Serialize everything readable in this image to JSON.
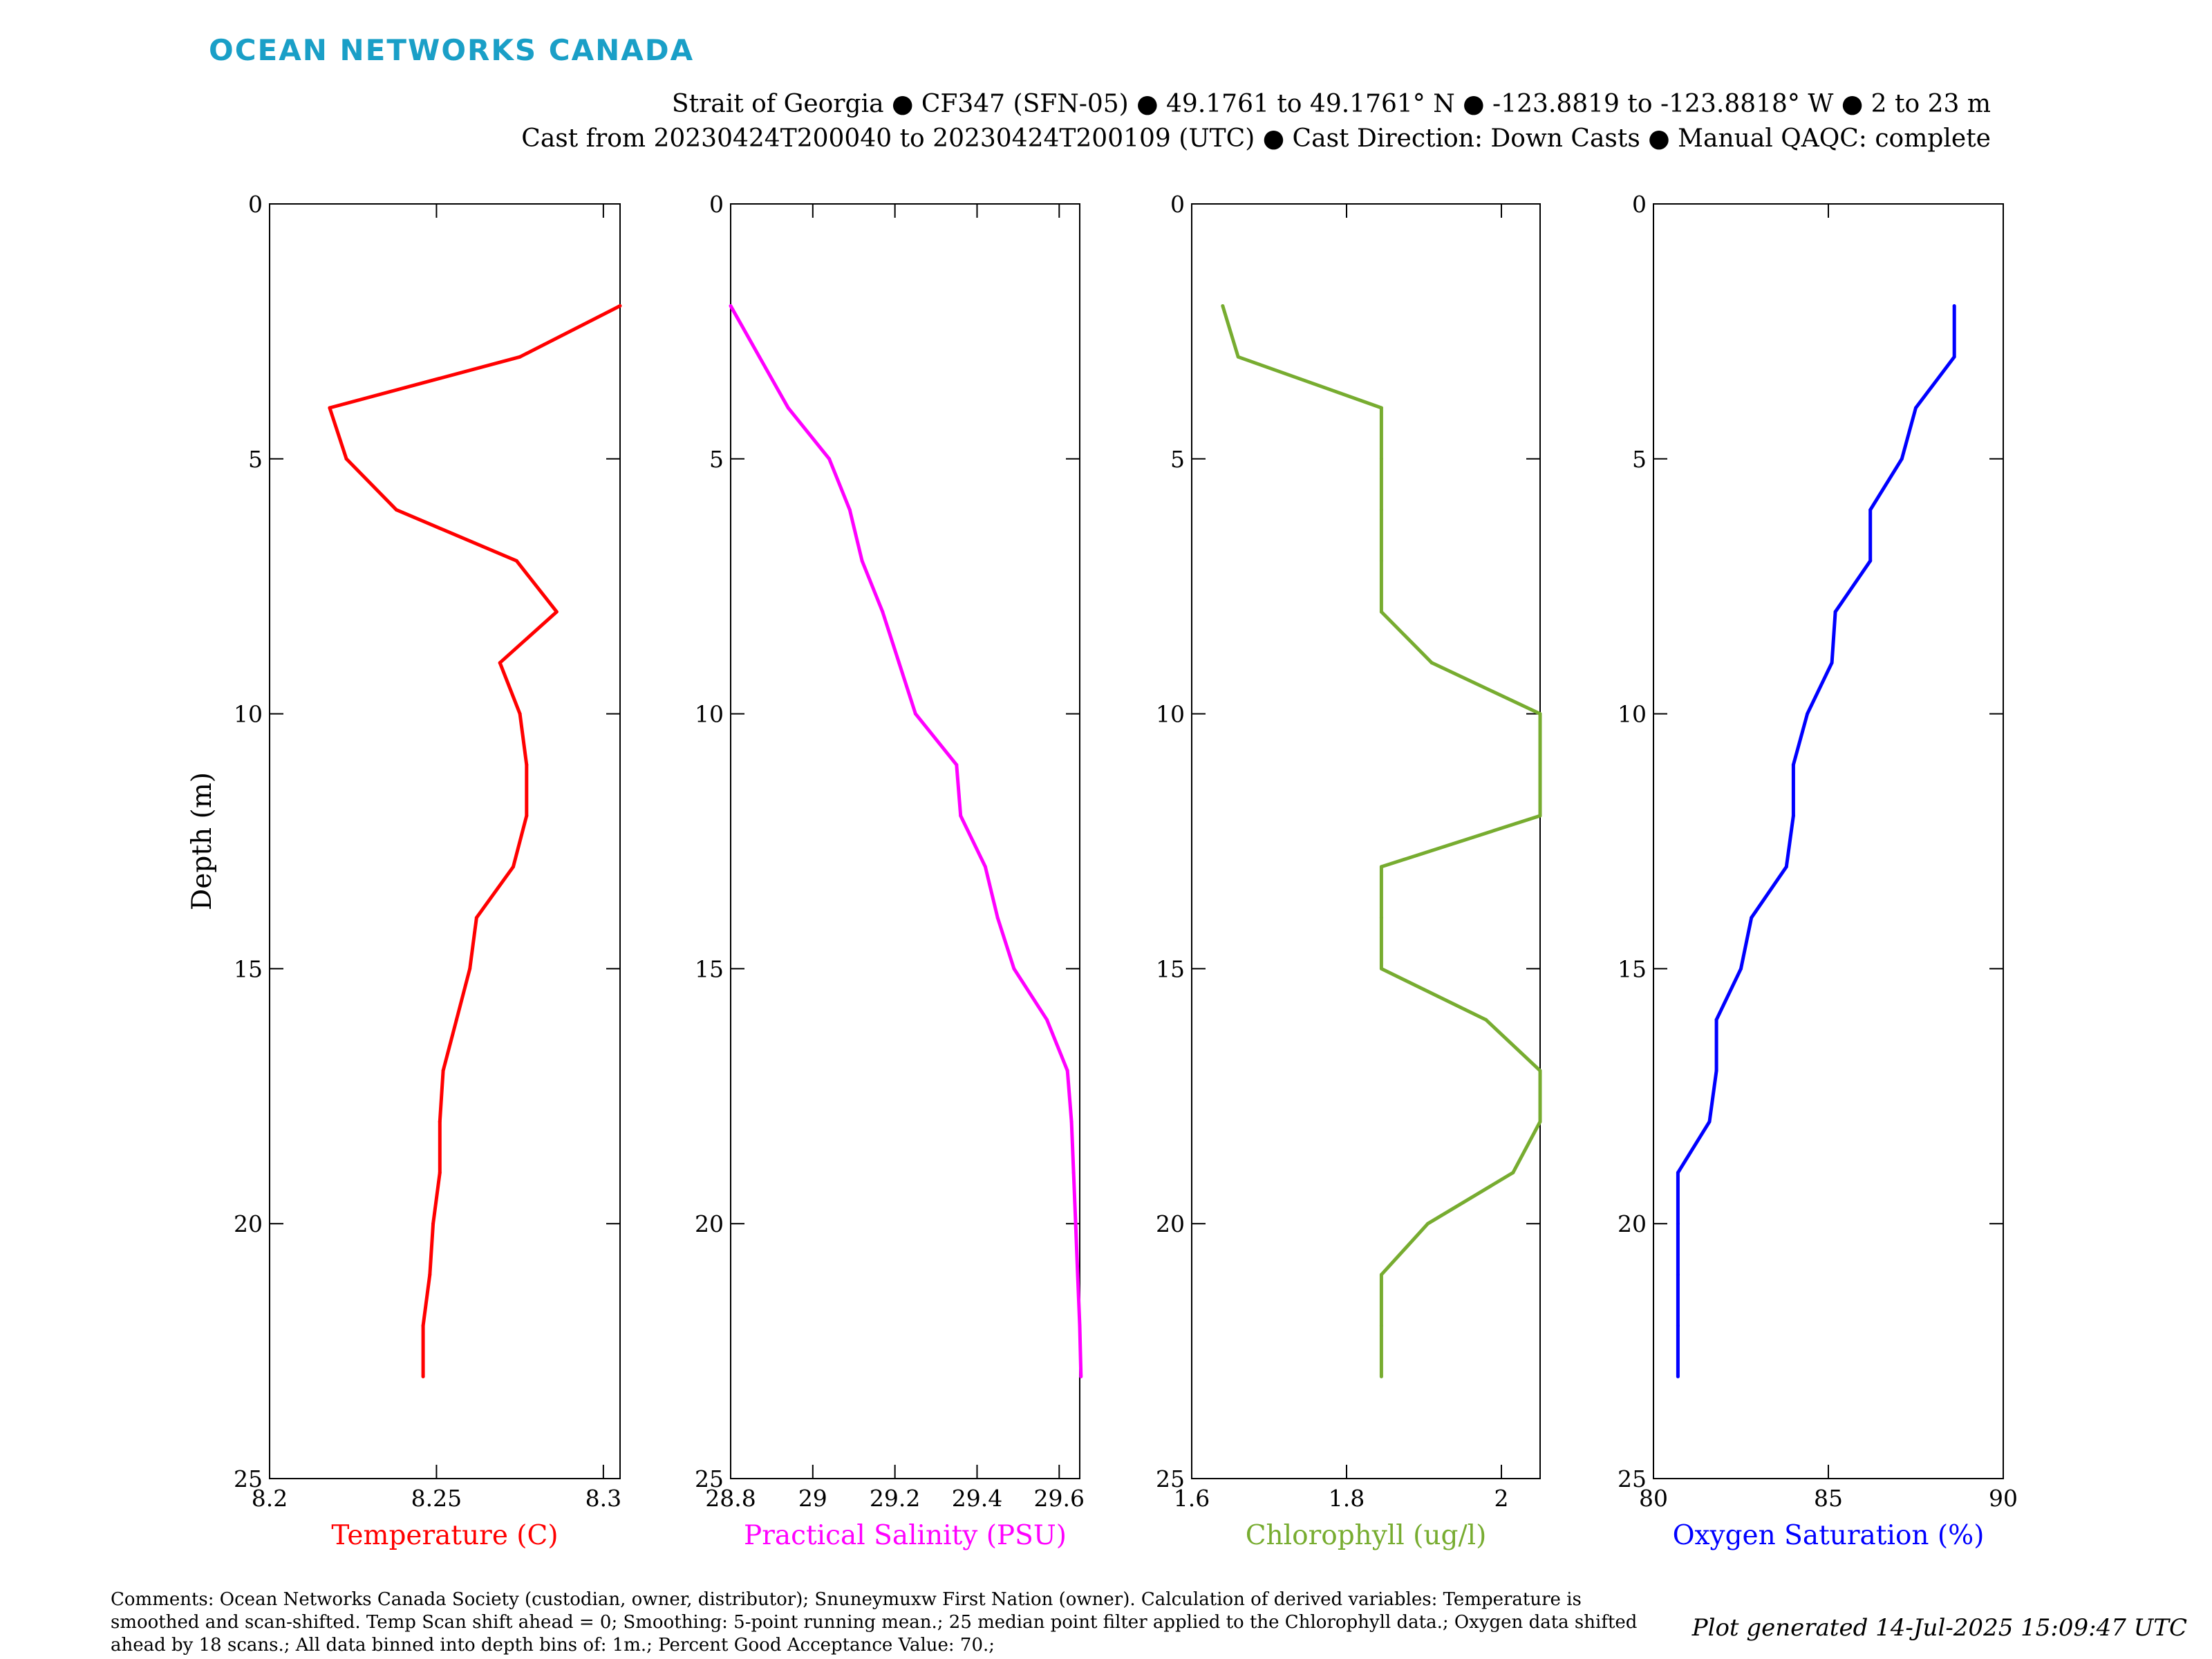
{
  "brand": "OCEAN NETWORKS CANADA",
  "header": {
    "line1": "Strait of Georgia ● CF347 (SFN-05) ● 49.1761 to 49.1761° N ● -123.8819 to -123.8818° W ● 2 to 23 m",
    "line2": "Cast from 20230424T200040 to 20230424T200109 (UTC) ● Cast Direction: Down Casts ● Manual QAQC: complete"
  },
  "comments": "Comments: Ocean Networks Canada Society (custodian, owner, distributor); Snuneymuxw First Nation (owner). Calculation of derived variables: Temperature is smoothed and scan-shifted. Temp Scan shift ahead = 0; Smoothing: 5-point running mean.; 25 median point filter applied to the Chlorophyll data.; Oxygen data shifted ahead by 18 scans.; All data binned into depth bins of: 1m.; Percent Good Acceptance Value: 70.;",
  "footer": "Plot generated 14-Jul-2025 15:09:47 UTC",
  "chart_data": [
    {
      "type": "line",
      "ylabel": "Depth (m)",
      "xlabel": "Temperature (C)",
      "color": "#ff0000",
      "xlim": [
        8.2,
        8.305
      ],
      "ylim": [
        0,
        25
      ],
      "y_reversed": true,
      "xticks": [
        8.2,
        8.25,
        8.3
      ],
      "xtick_labels": [
        "8.2",
        "8.25",
        "8.3"
      ],
      "yticks": [
        0,
        5,
        10,
        15,
        20,
        25
      ],
      "ytick_labels": [
        "0",
        "5",
        "10",
        "15",
        "20",
        "25"
      ],
      "depth": [
        2,
        3,
        4,
        5,
        6,
        7,
        8,
        9,
        10,
        11,
        12,
        13,
        14,
        15,
        16,
        17,
        18,
        19,
        20,
        21,
        22,
        23
      ],
      "values": [
        8.305,
        8.275,
        8.218,
        8.223,
        8.238,
        8.274,
        8.286,
        8.269,
        8.275,
        8.277,
        8.277,
        8.273,
        8.262,
        8.26,
        8.256,
        8.252,
        8.251,
        8.251,
        8.249,
        8.248,
        8.246,
        8.246
      ]
    },
    {
      "type": "line",
      "ylabel": "",
      "xlabel": "Practical Salinity (PSU)",
      "color": "#ff00ff",
      "xlim": [
        28.8,
        29.65
      ],
      "ylim": [
        0,
        25
      ],
      "y_reversed": true,
      "xticks": [
        28.8,
        29,
        29.2,
        29.4,
        29.6
      ],
      "xtick_labels": [
        "28.8",
        "29",
        "29.2",
        "29.4",
        "29.6"
      ],
      "yticks": [
        0,
        5,
        10,
        15,
        20,
        25
      ],
      "ytick_labels": [
        "0",
        "5",
        "10",
        "15",
        "20",
        "25"
      ],
      "depth": [
        2,
        3,
        4,
        5,
        6,
        7,
        8,
        9,
        10,
        11,
        12,
        13,
        14,
        15,
        16,
        17,
        18,
        19,
        20,
        21,
        22,
        23
      ],
      "values": [
        28.8,
        28.87,
        28.94,
        29.04,
        29.09,
        29.12,
        29.17,
        29.21,
        29.25,
        29.35,
        29.36,
        29.42,
        29.45,
        29.49,
        29.57,
        29.62,
        29.63,
        29.635,
        29.64,
        29.645,
        29.65,
        29.653
      ]
    },
    {
      "type": "line",
      "ylabel": "",
      "xlabel": "Chlorophyll (ug/l)",
      "color": "#77ac30",
      "xlim": [
        1.6,
        2.05
      ],
      "ylim": [
        0,
        25
      ],
      "y_reversed": true,
      "xticks": [
        1.6,
        1.8,
        2
      ],
      "xtick_labels": [
        "1.6",
        "1.8",
        "2"
      ],
      "yticks": [
        0,
        5,
        10,
        15,
        20,
        25
      ],
      "ytick_labels": [
        "0",
        "5",
        "10",
        "15",
        "20",
        "25"
      ],
      "depth": [
        2,
        3,
        4,
        5,
        6,
        7,
        8,
        9,
        10,
        11,
        12,
        13,
        14,
        15,
        16,
        17,
        18,
        19,
        20,
        21,
        22,
        23
      ],
      "values": [
        1.64,
        1.66,
        1.845,
        1.845,
        1.845,
        1.845,
        1.845,
        1.91,
        2.05,
        2.05,
        2.05,
        1.845,
        1.845,
        1.845,
        1.98,
        2.05,
        2.05,
        2.015,
        1.905,
        1.845,
        1.845,
        1.845
      ]
    },
    {
      "type": "line",
      "ylabel": "",
      "xlabel": "Oxygen Saturation (%)",
      "color": "#0000ff",
      "xlim": [
        80,
        90
      ],
      "ylim": [
        0,
        25
      ],
      "y_reversed": true,
      "xticks": [
        80,
        85,
        90
      ],
      "xtick_labels": [
        "80",
        "85",
        "90"
      ],
      "yticks": [
        0,
        5,
        10,
        15,
        20,
        25
      ],
      "ytick_labels": [
        "0",
        "5",
        "10",
        "15",
        "20",
        "25"
      ],
      "depth": [
        2,
        3,
        4,
        5,
        6,
        7,
        8,
        9,
        10,
        11,
        12,
        13,
        14,
        15,
        16,
        17,
        18,
        19,
        20,
        21,
        22,
        23
      ],
      "values": [
        88.6,
        88.6,
        87.5,
        87.1,
        86.2,
        86.2,
        85.2,
        85.1,
        84.4,
        84,
        84,
        83.8,
        82.8,
        82.5,
        81.8,
        81.8,
        81.6,
        80.7,
        80.7,
        80.7,
        80.7,
        80.7
      ]
    }
  ]
}
